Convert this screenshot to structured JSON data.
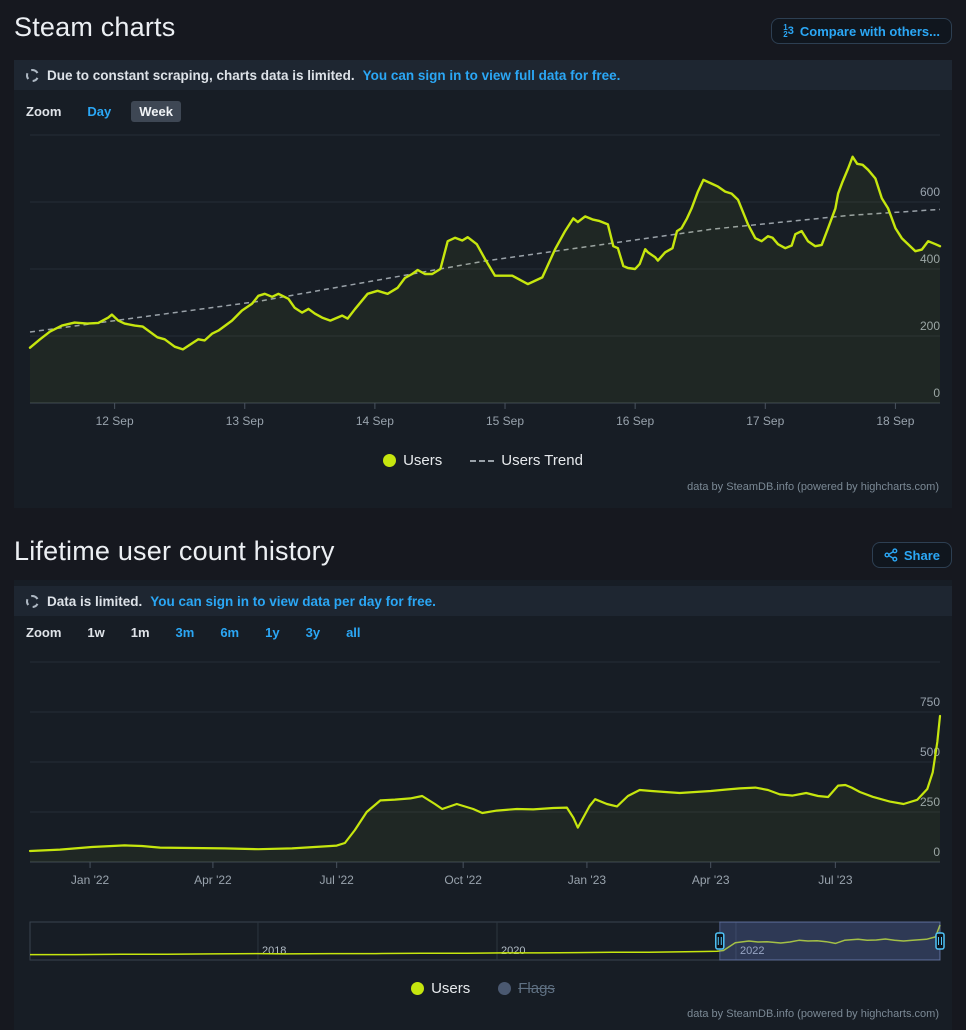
{
  "colors": {
    "users_line": "#c6e60e",
    "trend_line": "#99a1a8",
    "link_blue": "#2ba7f5",
    "flags_marker": "#4a5870",
    "page_bg": "#16181f",
    "panel_bg": "#171d25",
    "notice_bg": "#1e2631"
  },
  "icons": {
    "notice": "dashed-circle",
    "compare": "numbers-123",
    "compare_digits": [
      "1",
      "2",
      "3"
    ],
    "share": "share-nodes"
  },
  "header1": {
    "title": "Steam charts",
    "compare_button": "Compare with others..."
  },
  "header2": {
    "title": "Lifetime user count history",
    "share_button": "Share"
  },
  "panel1": {
    "notice": {
      "text": "Due to constant scraping, charts data is limited.",
      "link": "You can sign in to view full data for free."
    },
    "zoom": {
      "label": "Zoom",
      "options": [
        {
          "label": "Day",
          "state": "blue"
        },
        {
          "label": "Week",
          "state": "selected"
        }
      ]
    },
    "legend": {
      "users": "Users",
      "trend": "Users Trend"
    },
    "credits": "data by SteamDB.info (powered by highcharts.com)"
  },
  "panel2": {
    "notice": {
      "text": "Data is limited.",
      "link": "You can sign in to view data per day for free."
    },
    "zoom": {
      "label": "Zoom",
      "options": [
        {
          "label": "1w",
          "state": "plain"
        },
        {
          "label": "1m",
          "state": "plain"
        },
        {
          "label": "3m",
          "state": "blue"
        },
        {
          "label": "6m",
          "state": "blue"
        },
        {
          "label": "1y",
          "state": "blue"
        },
        {
          "label": "3y",
          "state": "blue"
        },
        {
          "label": "all",
          "state": "blue"
        }
      ]
    },
    "legend": {
      "users": "Users",
      "flags": "Flags"
    },
    "credits": "data by SteamDB.info (powered by highcharts.com)"
  },
  "chart_data": [
    {
      "type": "line",
      "name": "weekly-concurrent-users",
      "ylim": [
        0,
        800
      ],
      "grid_values": [
        0,
        200,
        400,
        600,
        800
      ],
      "yticks": [
        0,
        200,
        400,
        600
      ],
      "xticks": [
        {
          "f": 0.093,
          "label": "12 Sep"
        },
        {
          "f": 0.236,
          "label": "13 Sep"
        },
        {
          "f": 0.379,
          "label": "14 Sep"
        },
        {
          "f": 0.522,
          "label": "15 Sep"
        },
        {
          "f": 0.665,
          "label": "16 Sep"
        },
        {
          "f": 0.808,
          "label": "17 Sep"
        },
        {
          "f": 0.951,
          "label": "18 Sep"
        }
      ],
      "legend_entries": [
        "Users",
        "Users Trend"
      ],
      "series": [
        [
          0,
          165
        ],
        [
          0.011,
          190
        ],
        [
          0.022,
          213
        ],
        [
          0.035,
          231
        ],
        [
          0.049,
          240
        ],
        [
          0.063,
          237
        ],
        [
          0.075,
          239
        ],
        [
          0.086,
          255
        ],
        [
          0.09,
          264
        ],
        [
          0.097,
          246
        ],
        [
          0.104,
          237
        ],
        [
          0.115,
          231
        ],
        [
          0.124,
          228
        ],
        [
          0.14,
          196
        ],
        [
          0.148,
          190
        ],
        [
          0.159,
          168
        ],
        [
          0.168,
          160
        ],
        [
          0.178,
          178
        ],
        [
          0.185,
          190
        ],
        [
          0.192,
          187
        ],
        [
          0.2,
          207
        ],
        [
          0.207,
          216
        ],
        [
          0.222,
          246
        ],
        [
          0.233,
          276
        ],
        [
          0.244,
          296
        ],
        [
          0.251,
          320
        ],
        [
          0.258,
          326
        ],
        [
          0.266,
          317
        ],
        [
          0.273,
          326
        ],
        [
          0.284,
          311
        ],
        [
          0.291,
          284
        ],
        [
          0.299,
          270
        ],
        [
          0.306,
          281
        ],
        [
          0.313,
          267
        ],
        [
          0.321,
          255
        ],
        [
          0.33,
          246
        ],
        [
          0.343,
          261
        ],
        [
          0.349,
          252
        ],
        [
          0.357,
          280
        ],
        [
          0.371,
          326
        ],
        [
          0.382,
          335
        ],
        [
          0.393,
          326
        ],
        [
          0.404,
          344
        ],
        [
          0.412,
          373
        ],
        [
          0.42,
          385
        ],
        [
          0.426,
          397
        ],
        [
          0.434,
          385
        ],
        [
          0.442,
          385
        ],
        [
          0.451,
          400
        ],
        [
          0.459,
          483
        ],
        [
          0.467,
          493
        ],
        [
          0.475,
          485
        ],
        [
          0.481,
          495
        ],
        [
          0.491,
          474
        ],
        [
          0.5,
          430
        ],
        [
          0.511,
          380
        ],
        [
          0.53,
          380
        ],
        [
          0.547,
          355
        ],
        [
          0.563,
          375
        ],
        [
          0.577,
          459
        ],
        [
          0.588,
          513
        ],
        [
          0.597,
          551
        ],
        [
          0.602,
          540
        ],
        [
          0.61,
          557
        ],
        [
          0.618,
          548
        ],
        [
          0.626,
          543
        ],
        [
          0.635,
          533
        ],
        [
          0.641,
          468
        ],
        [
          0.646,
          462
        ],
        [
          0.652,
          409
        ],
        [
          0.657,
          403
        ],
        [
          0.665,
          400
        ],
        [
          0.67,
          415
        ],
        [
          0.676,
          459
        ],
        [
          0.679,
          450
        ],
        [
          0.687,
          435
        ],
        [
          0.69,
          425
        ],
        [
          0.698,
          450
        ],
        [
          0.706,
          462
        ],
        [
          0.711,
          513
        ],
        [
          0.716,
          522
        ],
        [
          0.722,
          551
        ],
        [
          0.727,
          581
        ],
        [
          0.734,
          631
        ],
        [
          0.74,
          666
        ],
        [
          0.749,
          655
        ],
        [
          0.756,
          646
        ],
        [
          0.764,
          631
        ],
        [
          0.771,
          625
        ],
        [
          0.778,
          607
        ],
        [
          0.789,
          533
        ],
        [
          0.797,
          492
        ],
        [
          0.804,
          483
        ],
        [
          0.811,
          498
        ],
        [
          0.816,
          493
        ],
        [
          0.822,
          474
        ],
        [
          0.83,
          462
        ],
        [
          0.837,
          470
        ],
        [
          0.841,
          504
        ],
        [
          0.848,
          513
        ],
        [
          0.855,
          483
        ],
        [
          0.863,
          468
        ],
        [
          0.87,
          472
        ],
        [
          0.877,
          522
        ],
        [
          0.885,
          581
        ],
        [
          0.888,
          625
        ],
        [
          0.893,
          661
        ],
        [
          0.899,
          700
        ],
        [
          0.904,
          735
        ],
        [
          0.909,
          714
        ],
        [
          0.915,
          711
        ],
        [
          0.921,
          696
        ],
        [
          0.929,
          670
        ],
        [
          0.936,
          611
        ],
        [
          0.943,
          581
        ],
        [
          0.951,
          522
        ],
        [
          0.958,
          492
        ],
        [
          0.965,
          474
        ],
        [
          0.973,
          453
        ],
        [
          0.98,
          458
        ],
        [
          0.987,
          483
        ],
        [
          0.995,
          474
        ],
        [
          1,
          468
        ]
      ],
      "trend": [
        [
          0,
          212
        ],
        [
          0.25,
          303
        ],
        [
          0.5,
          424
        ],
        [
          0.75,
          519
        ],
        [
          0.9,
          560
        ],
        [
          1,
          578
        ]
      ]
    },
    {
      "type": "line",
      "name": "lifetime-user-count",
      "ylim": [
        0,
        1000
      ],
      "grid_values": [
        0,
        250,
        500,
        750,
        1000
      ],
      "yticks": [
        0,
        250,
        500,
        750
      ],
      "xticks": [
        {
          "f": 0.066,
          "label": "Jan '22"
        },
        {
          "f": 0.201,
          "label": "Apr '22"
        },
        {
          "f": 0.337,
          "label": "Jul '22"
        },
        {
          "f": 0.476,
          "label": "Oct '22"
        },
        {
          "f": 0.612,
          "label": "Jan '23"
        },
        {
          "f": 0.748,
          "label": "Apr '23"
        },
        {
          "f": 0.885,
          "label": "Jul '23"
        }
      ],
      "legend_entries": [
        "Users",
        "Flags"
      ],
      "series": [
        [
          0,
          55
        ],
        [
          0.033,
          62
        ],
        [
          0.068,
          75
        ],
        [
          0.104,
          83
        ],
        [
          0.123,
          80
        ],
        [
          0.143,
          72
        ],
        [
          0.178,
          70
        ],
        [
          0.214,
          68
        ],
        [
          0.251,
          64
        ],
        [
          0.288,
          68
        ],
        [
          0.324,
          78
        ],
        [
          0.337,
          82
        ],
        [
          0.346,
          95
        ],
        [
          0.357,
          160
        ],
        [
          0.37,
          250
        ],
        [
          0.385,
          308
        ],
        [
          0.401,
          312
        ],
        [
          0.418,
          318
        ],
        [
          0.431,
          330
        ],
        [
          0.445,
          290
        ],
        [
          0.453,
          265
        ],
        [
          0.469,
          290
        ],
        [
          0.487,
          265
        ],
        [
          0.497,
          245
        ],
        [
          0.513,
          257
        ],
        [
          0.535,
          265
        ],
        [
          0.553,
          263
        ],
        [
          0.575,
          270
        ],
        [
          0.59,
          272
        ],
        [
          0.597,
          222
        ],
        [
          0.602,
          172
        ],
        [
          0.615,
          280
        ],
        [
          0.621,
          314
        ],
        [
          0.634,
          290
        ],
        [
          0.645,
          278
        ],
        [
          0.657,
          330
        ],
        [
          0.67,
          360
        ],
        [
          0.683,
          355
        ],
        [
          0.698,
          350
        ],
        [
          0.714,
          345
        ],
        [
          0.731,
          350
        ],
        [
          0.748,
          355
        ],
        [
          0.764,
          362
        ],
        [
          0.78,
          368
        ],
        [
          0.797,
          372
        ],
        [
          0.811,
          360
        ],
        [
          0.824,
          338
        ],
        [
          0.838,
          332
        ],
        [
          0.853,
          345
        ],
        [
          0.866,
          330
        ],
        [
          0.877,
          325
        ],
        [
          0.888,
          382
        ],
        [
          0.896,
          385
        ],
        [
          0.903,
          372
        ],
        [
          0.912,
          350
        ],
        [
          0.926,
          326
        ],
        [
          0.945,
          302
        ],
        [
          0.96,
          290
        ],
        [
          0.975,
          311
        ],
        [
          0.986,
          365
        ],
        [
          0.992,
          448
        ],
        [
          0.997,
          600
        ],
        [
          1,
          730
        ]
      ]
    },
    {
      "type": "navigator",
      "name": "lifetime-navigator",
      "year_labels": [
        {
          "f": 0.2505,
          "label": "2018"
        },
        {
          "f": 0.5132,
          "label": "2020"
        },
        {
          "f": 0.7758,
          "label": "2022"
        }
      ],
      "selection": [
        0.758,
        1.0
      ],
      "series": [
        [
          0,
          0.1
        ],
        [
          0.05,
          0.1
        ],
        [
          0.1,
          0.11
        ],
        [
          0.15,
          0.11
        ],
        [
          0.2,
          0.12
        ],
        [
          0.25,
          0.13
        ],
        [
          0.28,
          0.12
        ],
        [
          0.33,
          0.13
        ],
        [
          0.38,
          0.13
        ],
        [
          0.43,
          0.14
        ],
        [
          0.48,
          0.14
        ],
        [
          0.52,
          0.15
        ],
        [
          0.56,
          0.15
        ],
        [
          0.6,
          0.16
        ],
        [
          0.64,
          0.17
        ],
        [
          0.68,
          0.17
        ],
        [
          0.71,
          0.18
        ],
        [
          0.74,
          0.19
        ],
        [
          0.755,
          0.2
        ],
        [
          0.762,
          0.22
        ],
        [
          0.775,
          0.45
        ],
        [
          0.79,
          0.5
        ],
        [
          0.8,
          0.47
        ],
        [
          0.81,
          0.48
        ],
        [
          0.825,
          0.44
        ],
        [
          0.835,
          0.47
        ],
        [
          0.845,
          0.52
        ],
        [
          0.855,
          0.5
        ],
        [
          0.865,
          0.51
        ],
        [
          0.875,
          0.48
        ],
        [
          0.885,
          0.43
        ],
        [
          0.895,
          0.52
        ],
        [
          0.91,
          0.55
        ],
        [
          0.92,
          0.52
        ],
        [
          0.93,
          0.53
        ],
        [
          0.94,
          0.56
        ],
        [
          0.95,
          0.52
        ],
        [
          0.96,
          0.5
        ],
        [
          0.97,
          0.52
        ],
        [
          0.985,
          0.55
        ],
        [
          0.995,
          0.62
        ],
        [
          1,
          0.97
        ]
      ]
    }
  ]
}
